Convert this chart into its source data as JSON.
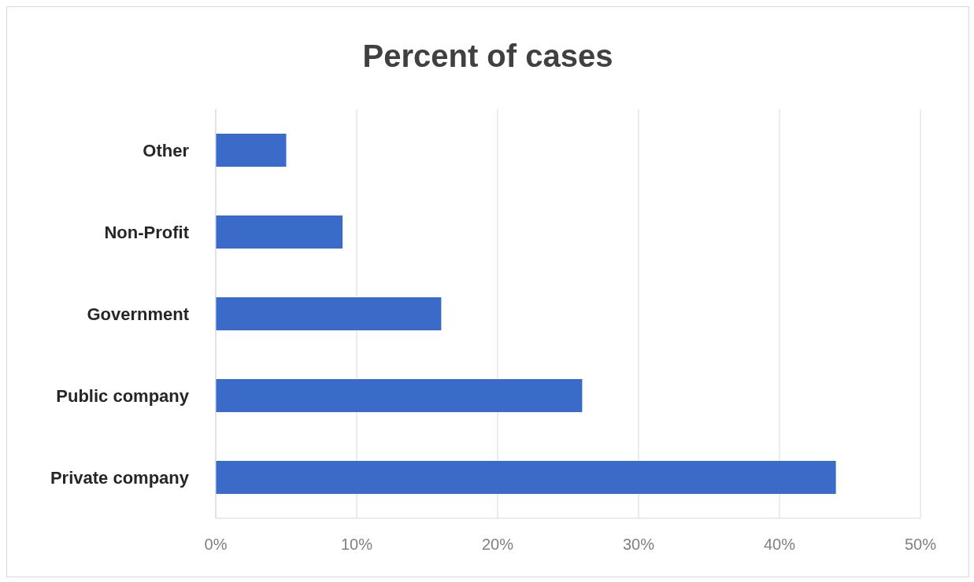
{
  "chart_data": {
    "type": "bar",
    "orientation": "horizontal",
    "title": "Percent of cases",
    "categories": [
      "Other",
      "Non-Profit",
      "Government",
      "Public company",
      "Private company"
    ],
    "values": [
      5,
      9,
      16,
      26,
      44
    ],
    "color": "#3a6bc8",
    "xlim": [
      0,
      50
    ],
    "xticks": [
      {
        "value": 0,
        "label": "0%"
      },
      {
        "value": 10,
        "label": "10%"
      },
      {
        "value": 20,
        "label": "20%"
      },
      {
        "value": 30,
        "label": "30%"
      },
      {
        "value": 40,
        "label": "40%"
      },
      {
        "value": 50,
        "label": "50%"
      }
    ],
    "grid": "x"
  }
}
